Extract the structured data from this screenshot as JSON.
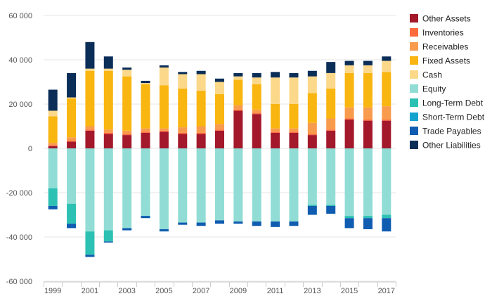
{
  "chart_data": {
    "type": "bar",
    "stacked": true,
    "categories": [
      "1999",
      "2000",
      "2001",
      "2002",
      "2003",
      "2004",
      "2005",
      "2006",
      "2007",
      "2008",
      "2009",
      "2010",
      "2011",
      "2012",
      "2013",
      "2014",
      "2015",
      "2016",
      "2017"
    ],
    "x_tick_labels": [
      "1999",
      "2001",
      "2003",
      "2005",
      "2007",
      "2009",
      "2011",
      "2013",
      "2015",
      "2017"
    ],
    "y_ticks": [
      60000,
      40000,
      20000,
      0,
      -20000,
      -40000,
      -60000
    ],
    "y_tick_labels": [
      "60 000",
      "40 000",
      "20 000",
      "0",
      "-20 000",
      "-40 000",
      "-60 000"
    ],
    "ylim": [
      -60000,
      60000
    ],
    "grid": true,
    "legend_position": "right",
    "series": [
      {
        "name": "Other Assets",
        "color": "#a3182b",
        "values": [
          1000,
          3000,
          8000,
          6500,
          6000,
          7000,
          7500,
          6500,
          6500,
          8000,
          17000,
          15500,
          7000,
          7000,
          6000,
          8000,
          13000,
          12500,
          12500
        ]
      },
      {
        "name": "Inventories",
        "color": "#ff6a3d",
        "values": [
          500,
          500,
          500,
          500,
          500,
          500,
          500,
          500,
          500,
          500,
          500,
          500,
          500,
          500,
          500,
          500,
          500,
          500,
          500
        ]
      },
      {
        "name": "Receivables",
        "color": "#f89b4c",
        "values": [
          1000,
          1500,
          1500,
          1500,
          1500,
          1500,
          1000,
          2500,
          3000,
          2500,
          2000,
          1500,
          1500,
          1500,
          5000,
          5000,
          5000,
          5500,
          6000
        ]
      },
      {
        "name": "Fixed Assets",
        "color": "#f9b510",
        "values": [
          12000,
          17500,
          25000,
          26500,
          24500,
          20000,
          19500,
          17500,
          16000,
          13500,
          11500,
          11500,
          11000,
          11000,
          13500,
          13500,
          15500,
          15500,
          15500
        ]
      },
      {
        "name": "Cash",
        "color": "#fcd88a",
        "values": [
          2500,
          500,
          1000,
          1000,
          3000,
          500,
          8000,
          6500,
          7500,
          5500,
          1500,
          3000,
          12000,
          12000,
          7500,
          7000,
          3500,
          3500,
          5000
        ]
      },
      {
        "name": "Equity",
        "color": "#91ddd5",
        "values": [
          -18000,
          -25000,
          -37500,
          -37000,
          -36000,
          -30500,
          -36500,
          -33500,
          -33500,
          -32500,
          -33000,
          -33000,
          -33000,
          -33000,
          -25500,
          -25500,
          -30500,
          -30500,
          -30000
        ]
      },
      {
        "name": "Long-Term Debt",
        "color": "#2dc1b4",
        "values": [
          -8000,
          -9000,
          -10500,
          -5000,
          0,
          0,
          0,
          0,
          0,
          0,
          0,
          0,
          0,
          0,
          -500,
          -500,
          -1000,
          -1000,
          -1500
        ]
      },
      {
        "name": "Short-Term Debt",
        "color": "#14a3cf",
        "values": [
          0,
          0,
          0,
          0,
          0,
          0,
          0,
          0,
          0,
          0,
          0,
          0,
          0,
          0,
          0,
          0,
          0,
          0,
          0
        ]
      },
      {
        "name": "Trade Payables",
        "color": "#0f5cb0",
        "values": [
          -1500,
          -2000,
          -1000,
          -500,
          -1000,
          -1000,
          -1000,
          -1000,
          -1500,
          -1500,
          -1000,
          -2000,
          -2500,
          -2000,
          -4000,
          -3500,
          -4500,
          -5000,
          -6000
        ]
      },
      {
        "name": "Other Liabilities",
        "color": "#0b2e58",
        "values": [
          9500,
          11000,
          12000,
          5500,
          1000,
          1000,
          1000,
          1000,
          1500,
          1500,
          1500,
          2000,
          2500,
          2000,
          2500,
          5000,
          2000,
          2000,
          2000
        ]
      }
    ]
  }
}
